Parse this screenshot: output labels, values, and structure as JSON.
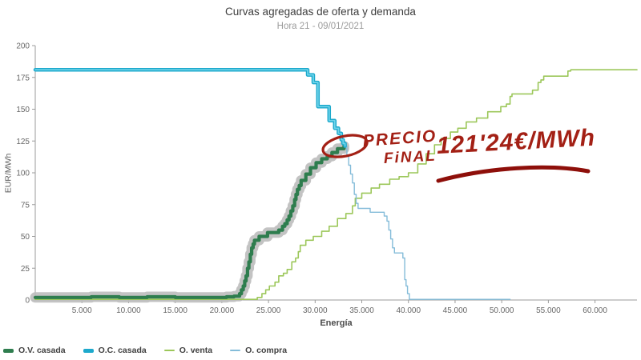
{
  "chart_data": {
    "type": "line",
    "title": "Curvas agregadas de oferta y demanda",
    "subtitle": "Hora 21 - 09/01/2021",
    "xlabel": "Energía",
    "ylabel": "EUR/MWh",
    "xlim": [
      0,
      64500
    ],
    "ylim": [
      0,
      200
    ],
    "grid": false,
    "legend_position": "bottom-left",
    "x_ticks": [
      {
        "value": 5000,
        "label": "5.000"
      },
      {
        "value": 10000,
        "label": "10.000"
      },
      {
        "value": 15000,
        "label": "15.000"
      },
      {
        "value": 20000,
        "label": "20.000"
      },
      {
        "value": 25000,
        "label": "25.000"
      },
      {
        "value": 30000,
        "label": "30.000"
      },
      {
        "value": 35000,
        "label": "35.000"
      },
      {
        "value": 40000,
        "label": "40.000"
      },
      {
        "value": 45000,
        "label": "45.000"
      },
      {
        "value": 50000,
        "label": "50.000"
      },
      {
        "value": 55000,
        "label": "55.000"
      },
      {
        "value": 60000,
        "label": "60.000"
      }
    ],
    "y_ticks": [
      0,
      25,
      50,
      75,
      100,
      125,
      150,
      175,
      200
    ],
    "clearing_point": {
      "energy_mwh": 33200,
      "price_eur_mwh": 121.24
    },
    "series": [
      {
        "id": "ov-casada",
        "label": "O.V. casada",
        "color": "#2e7d4e",
        "width": 4.2,
        "z": 3,
        "band_color": "#bcbcbc",
        "band_width": 13,
        "swatch_thick": true,
        "points": [
          [
            0,
            2
          ],
          [
            3000,
            2
          ],
          [
            6000,
            2.5
          ],
          [
            9000,
            2
          ],
          [
            12000,
            2.5
          ],
          [
            15000,
            2
          ],
          [
            18000,
            2
          ],
          [
            20500,
            2.5
          ],
          [
            21300,
            3
          ],
          [
            21900,
            5
          ],
          [
            22100,
            8
          ],
          [
            22300,
            11
          ],
          [
            22450,
            15
          ],
          [
            22600,
            19
          ],
          [
            22750,
            25
          ],
          [
            22900,
            30
          ],
          [
            23050,
            36
          ],
          [
            23200,
            41
          ],
          [
            23350,
            44
          ],
          [
            23500,
            47
          ],
          [
            24000,
            50
          ],
          [
            24900,
            53
          ],
          [
            26100,
            55
          ],
          [
            26500,
            58
          ],
          [
            26750,
            60
          ],
          [
            27000,
            63
          ],
          [
            27200,
            66
          ],
          [
            27400,
            70
          ],
          [
            27600,
            74
          ],
          [
            27800,
            79
          ],
          [
            27950,
            83
          ],
          [
            28100,
            87
          ],
          [
            28300,
            90
          ],
          [
            28500,
            94
          ],
          [
            29000,
            99
          ],
          [
            29500,
            104
          ],
          [
            30100,
            108
          ],
          [
            30700,
            111
          ],
          [
            31300,
            113
          ],
          [
            31800,
            116
          ],
          [
            32400,
            119
          ],
          [
            33100,
            121
          ]
        ]
      },
      {
        "id": "oc-casada",
        "label": "O.C. casada",
        "color": "#1da9cc",
        "inner_color": "#6fd4ea",
        "width": 4.5,
        "z": 4,
        "swatch_thick": true,
        "points": [
          [
            0,
            181
          ],
          [
            29200,
            177
          ],
          [
            29800,
            171
          ],
          [
            30300,
            152
          ],
          [
            31500,
            141
          ],
          [
            32100,
            135
          ],
          [
            32500,
            131
          ],
          [
            32800,
            126
          ],
          [
            33000,
            123
          ],
          [
            33200,
            121
          ]
        ]
      },
      {
        "id": "o-venta",
        "label": "O. venta",
        "color": "#9cc75a",
        "width": 1.6,
        "z": 1,
        "swatch_thick": false,
        "points": [
          [
            0,
            0.5
          ],
          [
            23800,
            2
          ],
          [
            24300,
            5
          ],
          [
            24700,
            8
          ],
          [
            25100,
            11
          ],
          [
            25700,
            14
          ],
          [
            26100,
            19
          ],
          [
            26600,
            21
          ],
          [
            27000,
            24
          ],
          [
            27500,
            30
          ],
          [
            27900,
            33
          ],
          [
            28200,
            38
          ],
          [
            28400,
            43
          ],
          [
            29000,
            47
          ],
          [
            29800,
            50
          ],
          [
            30700,
            54
          ],
          [
            31500,
            58
          ],
          [
            32400,
            64
          ],
          [
            33300,
            68
          ],
          [
            34000,
            74
          ],
          [
            34300,
            80
          ],
          [
            35000,
            84
          ],
          [
            36000,
            88
          ],
          [
            36900,
            91
          ],
          [
            38000,
            95
          ],
          [
            39000,
            97
          ],
          [
            40000,
            100
          ],
          [
            41000,
            107
          ],
          [
            41900,
            115
          ],
          [
            42800,
            122
          ],
          [
            43500,
            127
          ],
          [
            44500,
            132
          ],
          [
            45300,
            135
          ],
          [
            46200,
            140
          ],
          [
            47300,
            143
          ],
          [
            48500,
            148
          ],
          [
            49900,
            152
          ],
          [
            50500,
            154
          ],
          [
            50900,
            160
          ],
          [
            51100,
            162
          ],
          [
            53300,
            165
          ],
          [
            53900,
            171
          ],
          [
            54200,
            173
          ],
          [
            54500,
            176
          ],
          [
            57100,
            180
          ],
          [
            57400,
            181
          ],
          [
            64500,
            181
          ]
        ]
      },
      {
        "id": "o-compra",
        "label": "O. compra",
        "color": "#84bcd9",
        "width": 1.4,
        "z": 2,
        "swatch_thick": false,
        "points": [
          [
            0,
            181
          ],
          [
            29200,
            177
          ],
          [
            29800,
            171
          ],
          [
            30300,
            152
          ],
          [
            31500,
            141
          ],
          [
            32100,
            135
          ],
          [
            32500,
            131
          ],
          [
            32800,
            126
          ],
          [
            33000,
            123
          ],
          [
            33200,
            121
          ],
          [
            33400,
            114
          ],
          [
            33600,
            106
          ],
          [
            33800,
            99
          ],
          [
            34000,
            92
          ],
          [
            34200,
            83
          ],
          [
            34400,
            76
          ],
          [
            34600,
            72
          ],
          [
            35900,
            69
          ],
          [
            37400,
            66
          ],
          [
            37700,
            62
          ],
          [
            37900,
            55
          ],
          [
            38100,
            48
          ],
          [
            38300,
            41
          ],
          [
            38500,
            37
          ],
          [
            39400,
            33
          ],
          [
            39600,
            16
          ],
          [
            39750,
            11
          ],
          [
            39900,
            5
          ],
          [
            40100,
            0.5
          ],
          [
            50900,
            0.5
          ]
        ]
      }
    ],
    "annotation": {
      "line1": "PRECIO",
      "line2": "FiNAL",
      "price": "121'24€/MWh",
      "color": "#a32015",
      "underline_color": "#8e0f0a",
      "circle": {
        "x": 33200,
        "y": 121
      }
    }
  }
}
